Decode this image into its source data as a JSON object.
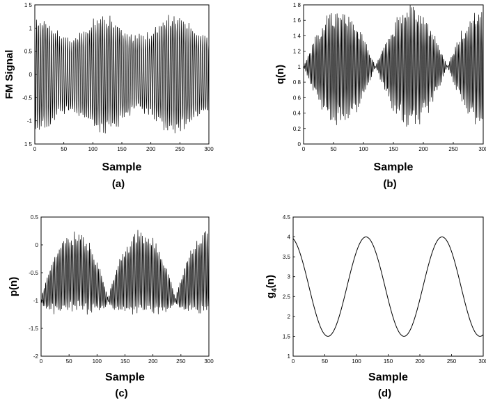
{
  "colors": {
    "ink": "#000000",
    "background": "#ffffff"
  },
  "chart_data": [
    {
      "id": "a",
      "type": "line",
      "caption": "(a)",
      "ylabel": "FM Signal",
      "xlabel": "Sample",
      "xlim": [
        0,
        300
      ],
      "ylim": [
        -1.5,
        1.5
      ],
      "xticks": [
        0,
        50,
        100,
        150,
        200,
        250,
        300
      ],
      "yticks": [
        1.5,
        1,
        0.5,
        0,
        -0.5,
        -1,
        -1.5
      ],
      "ytick_labels": [
        "1 5",
        "1",
        "0.5",
        "0",
        "-0.5",
        "-1",
        "1 5"
      ],
      "series": [
        {
          "signal": "fm",
          "description_values": {
            "amplitude_min": -1.3,
            "amplitude_max": 1.3
          }
        }
      ]
    },
    {
      "id": "b",
      "type": "line",
      "caption": "(b)",
      "ylabel": "q(n)",
      "xlabel": "Sample",
      "xlim": [
        0,
        300
      ],
      "ylim": [
        0,
        1.8
      ],
      "xticks": [
        0,
        50,
        100,
        150,
        200,
        250,
        300
      ],
      "yticks": [
        1.8,
        1.6,
        1.4,
        1.2,
        1,
        0.8,
        0.6,
        0.4,
        0.2,
        0
      ],
      "ytick_labels": [
        "1 8",
        "1 6",
        "1 4",
        "1 2",
        "1",
        "0 8",
        "0 6",
        "0.4",
        "0.2",
        "0"
      ],
      "series": [
        {
          "signal": "q",
          "description_values": {
            "center": 1,
            "min": 0,
            "max": 1.75,
            "nodes": [
              60,
              180,
              300
            ]
          }
        }
      ]
    },
    {
      "id": "c",
      "type": "line",
      "caption": "(c)",
      "ylabel": "p(n)",
      "xlabel": "Sample",
      "xlim": [
        0,
        300
      ],
      "ylim": [
        -2,
        0.5
      ],
      "xticks": [
        0,
        50,
        100,
        150,
        200,
        250,
        300
      ],
      "yticks": [
        0.5,
        0,
        -0.5,
        -1,
        -1.5,
        -2
      ],
      "ytick_labels": [
        "0.5",
        "0",
        "-0.5",
        "-1",
        "-1.5",
        "-2"
      ],
      "series": [
        {
          "signal": "p",
          "description_values": {
            "center": -1,
            "min": -1.75,
            "max": 0.25,
            "nodes": [
              120,
              240
            ]
          }
        }
      ]
    },
    {
      "id": "d",
      "type": "line",
      "caption": "(d)",
      "ylabel": "g4(n)",
      "ylabel_base": "g",
      "ylabel_sub": "4",
      "ylabel_tail": "(n)",
      "xlabel": "Sample",
      "xlim": [
        0,
        300
      ],
      "ylim": [
        1,
        4.5
      ],
      "xticks": [
        0,
        50,
        100,
        150,
        200,
        250,
        300
      ],
      "yticks": [
        4.5,
        4,
        3.5,
        3,
        2.5,
        2,
        1.5,
        1
      ],
      "ytick_labels": [
        "4.5",
        "4",
        "3.5",
        "3",
        "2.5",
        "2",
        "1.5",
        "1"
      ],
      "series": [
        {
          "signal": "g4",
          "description_values": {
            "mean": 2.75,
            "amplitude": 1.25,
            "period": 120,
            "peak_at": 115
          }
        }
      ]
    }
  ]
}
